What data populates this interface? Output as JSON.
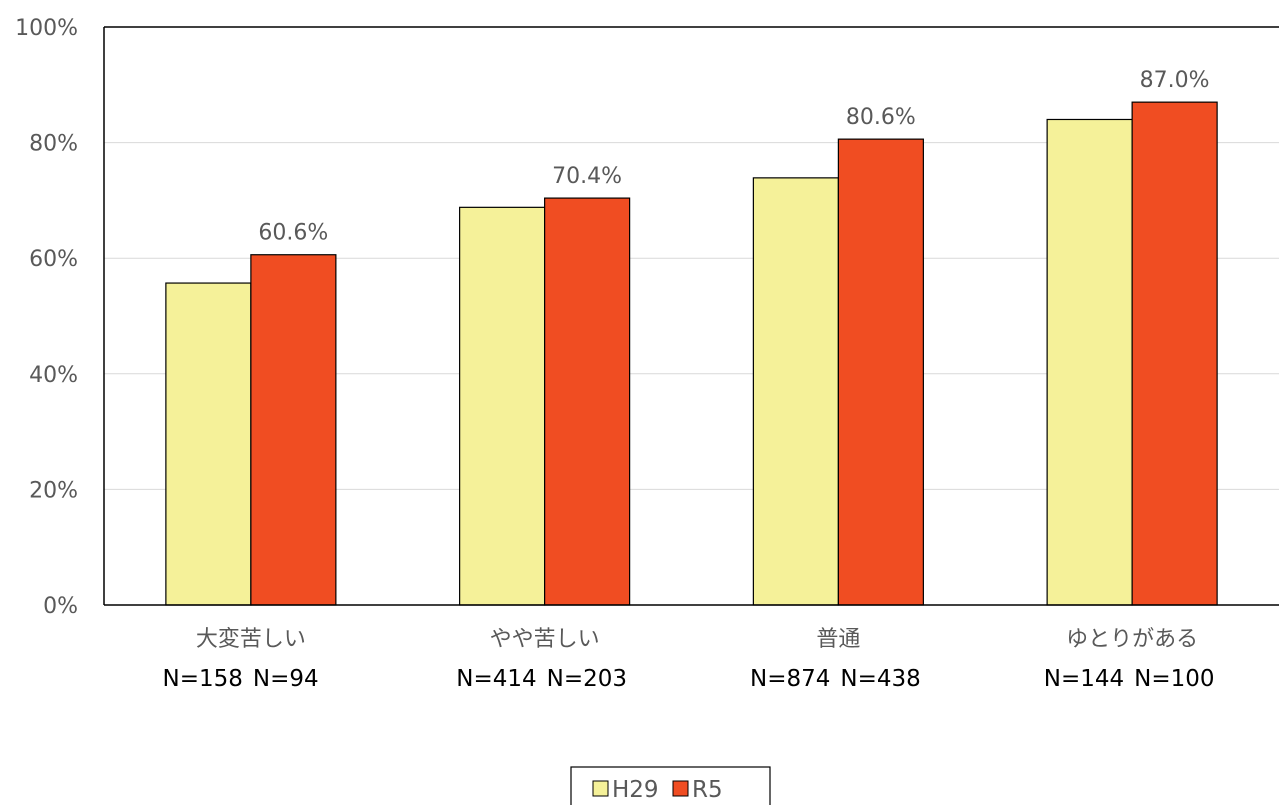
{
  "chart_data": {
    "type": "bar",
    "categories": [
      "大変苦しい",
      "やや苦しい",
      "普通",
      "ゆとりがある"
    ],
    "sample_sizes": [
      [
        "N=158",
        "N=94"
      ],
      [
        "N=414",
        "N=203"
      ],
      [
        "N=874",
        "N=438"
      ],
      [
        "N=144",
        "N=100"
      ]
    ],
    "series": [
      {
        "name": "H29",
        "values": [
          55.7,
          68.8,
          73.9,
          84.0
        ],
        "color": "#f5f199"
      },
      {
        "name": "R5",
        "values": [
          60.6,
          70.4,
          80.6,
          87.0
        ],
        "color": "#f04d22",
        "data_labels": [
          "60.6%",
          "70.4%",
          "80.6%",
          "87.0%"
        ]
      }
    ],
    "ylim": [
      0,
      100
    ],
    "yticks": [
      "0%",
      "20%",
      "40%",
      "60%",
      "80%",
      "100%"
    ],
    "grid": true,
    "legend_position": "bottom"
  }
}
